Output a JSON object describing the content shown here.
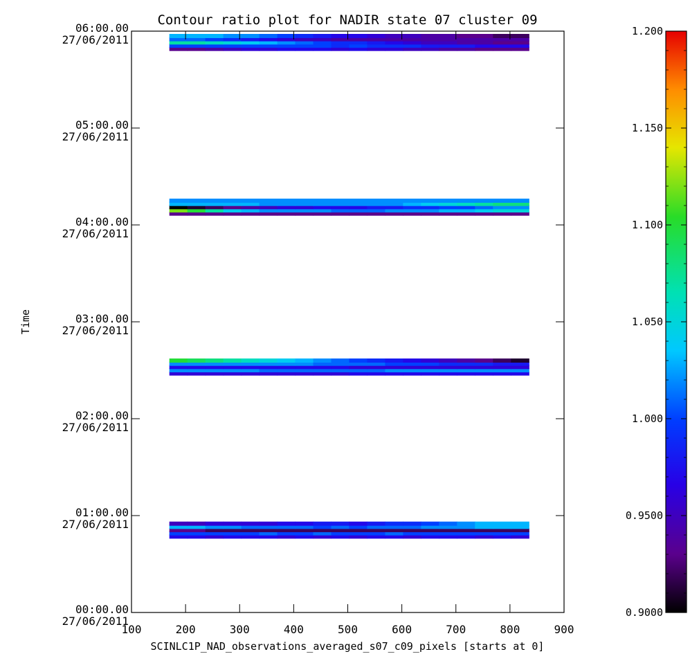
{
  "chart_data": {
    "type": "heatmap",
    "title": "Contour ratio plot for NADIR state 07 cluster 09",
    "xlabel": "SCINLC1P_NAD_observations_averaged_s07_c09_pixels [starts at 0]",
    "ylabel": "Time",
    "xlim": [
      100,
      900
    ],
    "x_ticks": [
      "100",
      "200",
      "300",
      "400",
      "500",
      "600",
      "700",
      "800",
      "900"
    ],
    "ylim": [
      "00:00.00 27/06/2011",
      "06:00.00 27/06/2011"
    ],
    "y_ticks": [
      {
        "time": "00:00.00",
        "date": "27/06/2011"
      },
      {
        "time": "01:00.00",
        "date": "27/06/2011"
      },
      {
        "time": "02:00.00",
        "date": "27/06/2011"
      },
      {
        "time": "03:00.00",
        "date": "27/06/2011"
      },
      {
        "time": "04:00.00",
        "date": "27/06/2011"
      },
      {
        "time": "05:00.00",
        "date": "27/06/2011"
      },
      {
        "time": "06:00.00",
        "date": "27/06/2011"
      }
    ],
    "colorbar": {
      "min": 0.9,
      "max": 1.2,
      "ticks": [
        "0.9000",
        "0.9500",
        "1.000",
        "1.050",
        "1.100",
        "1.150",
        "1.200"
      ],
      "colormap": "rainbow"
    },
    "pixel_range": [
      170,
      835
    ],
    "observations": [
      {
        "rows": [
          {
            "time": "00:47",
            "values": [
              0.97,
              0.97,
              0.96,
              0.97,
              0.97,
              0.97,
              0.96,
              0.97,
              0.96,
              0.97,
              0.96,
              0.97,
              0.97,
              0.96,
              0.97,
              0.97,
              0.97,
              0.96,
              0.97,
              0.96
            ]
          },
          {
            "time": "00:49",
            "values": [
              1.0,
              1.0,
              1.0,
              1.0,
              1.0,
              1.01,
              1.0,
              1.0,
              1.01,
              1.0,
              1.0,
              1.0,
              1.01,
              1.0,
              1.0,
              1.0,
              1.0,
              1.0,
              1.0,
              1.0
            ]
          },
          {
            "time": "00:51",
            "values": [
              0.93,
              0.93,
              0.92,
              0.92,
              0.92,
              0.92,
              0.92,
              0.92,
              0.92,
              0.92,
              0.92,
              0.92,
              0.92,
              0.92,
              0.92,
              0.92,
              0.92,
              0.92,
              0.92,
              0.92
            ]
          },
          {
            "time": "00:53",
            "values": [
              1.03,
              1.03,
              1.02,
              1.02,
              1.01,
              1.01,
              1.01,
              1.01,
              1.0,
              1.01,
              1.0,
              1.01,
              1.01,
              1.01,
              1.02,
              1.02,
              1.02,
              1.03,
              1.03,
              1.03
            ]
          },
          {
            "time": "00:55",
            "values": [
              0.95,
              0.95,
              0.96,
              0.96,
              0.96,
              0.96,
              0.97,
              0.97,
              0.98,
              0.98,
              0.97,
              0.98,
              0.99,
              0.99,
              1.0,
              1.01,
              1.02,
              1.03,
              1.03,
              1.03
            ]
          }
        ]
      },
      {
        "rows": [
          {
            "time": "02:28",
            "values": [
              0.96,
              0.96,
              0.96,
              0.96,
              0.96,
              0.96,
              0.96,
              0.96,
              0.96,
              0.96,
              0.97,
              0.97,
              0.97,
              0.97,
              0.97,
              0.97,
              0.97,
              0.97,
              0.97,
              0.97
            ]
          },
          {
            "time": "02:30",
            "values": [
              1.02,
              1.02,
              1.02,
              1.02,
              1.02,
              1.01,
              1.01,
              1.01,
              1.01,
              1.01,
              1.01,
              1.01,
              1.02,
              1.02,
              1.02,
              1.02,
              1.02,
              1.02,
              1.02,
              1.02
            ]
          },
          {
            "time": "02:32",
            "values": [
              0.97,
              0.97,
              0.97,
              0.97,
              0.97,
              0.97,
              0.97,
              0.97,
              0.97,
              0.97,
              0.96,
              0.96,
              0.96,
              0.96,
              0.96,
              0.96,
              0.96,
              0.96,
              0.96,
              0.96
            ]
          },
          {
            "time": "02:34",
            "values": [
              1.02,
              1.02,
              1.02,
              1.02,
              1.02,
              1.02,
              1.02,
              1.02,
              1.01,
              1.01,
              1.01,
              1.01,
              1.0,
              1.0,
              1.0,
              0.99,
              0.99,
              0.99,
              0.98,
              0.98
            ]
          },
          {
            "time": "02:36",
            "values": [
              1.1,
              1.09,
              1.08,
              1.07,
              1.06,
              1.05,
              1.04,
              1.03,
              1.02,
              1.01,
              1.0,
              0.99,
              0.98,
              0.97,
              0.96,
              0.95,
              0.94,
              0.93,
              0.92,
              0.91
            ]
          }
        ]
      },
      {
        "rows": [
          {
            "time": "04:07",
            "values": [
              0.93,
              0.93,
              0.93,
              0.93,
              0.93,
              0.93,
              0.93,
              0.93,
              0.93,
              0.93,
              0.93,
              0.93,
              0.93,
              0.93,
              0.93,
              0.93,
              0.93,
              0.93,
              0.93,
              0.93
            ]
          },
          {
            "time": "04:09",
            "values": [
              1.12,
              1.1,
              1.07,
              1.04,
              1.03,
              1.02,
              1.02,
              1.02,
              1.02,
              1.01,
              1.01,
              1.01,
              1.02,
              1.02,
              1.02,
              1.03,
              1.03,
              1.04,
              1.05,
              1.05
            ]
          },
          {
            "time": "04:11",
            "values": [
              0.9,
              0.91,
              0.92,
              0.93,
              0.94,
              0.95,
              0.96,
              0.96,
              0.97,
              0.97,
              0.97,
              0.98,
              0.98,
              0.99,
              0.99,
              1.0,
              1.0,
              1.01,
              1.02,
              1.02
            ]
          },
          {
            "time": "04:13",
            "values": [
              1.03,
              1.03,
              1.03,
              1.03,
              1.03,
              1.02,
              1.02,
              1.02,
              1.02,
              1.02,
              1.02,
              1.02,
              1.02,
              1.03,
              1.04,
              1.05,
              1.06,
              1.07,
              1.08,
              1.08
            ]
          },
          {
            "time": "04:15",
            "values": [
              1.02,
              1.02,
              1.02,
              1.02,
              1.02,
              1.02,
              1.02,
              1.02,
              1.02,
              1.02,
              1.02,
              1.02,
              1.02,
              1.02,
              1.02,
              1.02,
              1.02,
              1.02,
              1.02,
              1.02
            ]
          }
        ]
      },
      {
        "rows": [
          {
            "time": "05:49",
            "values": [
              0.93,
              0.93,
              0.94,
              0.95,
              0.96,
              0.96,
              0.97,
              0.97,
              0.97,
              0.96,
              0.97,
              0.96,
              0.96,
              0.95,
              0.95,
              0.94,
              0.94,
              0.93,
              0.93,
              0.93
            ]
          },
          {
            "time": "05:51",
            "values": [
              1.0,
              1.0,
              1.0,
              1.0,
              1.0,
              1.0,
              1.0,
              1.0,
              1.0,
              0.99,
              1.0,
              0.99,
              0.99,
              0.99,
              0.98,
              0.98,
              0.98,
              0.97,
              0.97,
              0.97
            ]
          },
          {
            "time": "05:53",
            "values": [
              1.07,
              1.07,
              1.06,
              1.05,
              1.04,
              1.03,
              1.02,
              1.01,
              1.0,
              0.99,
              0.99,
              0.98,
              0.97,
              0.96,
              0.95,
              0.95,
              0.94,
              0.94,
              0.93,
              0.93
            ]
          },
          {
            "time": "05:55",
            "values": [
              1.01,
              1.01,
              1.0,
              0.99,
              0.98,
              0.97,
              0.96,
              0.95,
              0.95,
              0.94,
              0.94,
              0.94,
              0.94,
              0.94,
              0.94,
              0.94,
              0.94,
              0.94,
              0.94,
              0.94
            ]
          },
          {
            "time": "05:57",
            "values": [
              1.03,
              1.03,
              1.03,
              1.02,
              1.02,
              1.01,
              1.0,
              0.99,
              0.98,
              0.97,
              0.97,
              0.96,
              0.95,
              0.95,
              0.94,
              0.94,
              0.93,
              0.93,
              0.92,
              0.92
            ]
          }
        ]
      }
    ]
  }
}
